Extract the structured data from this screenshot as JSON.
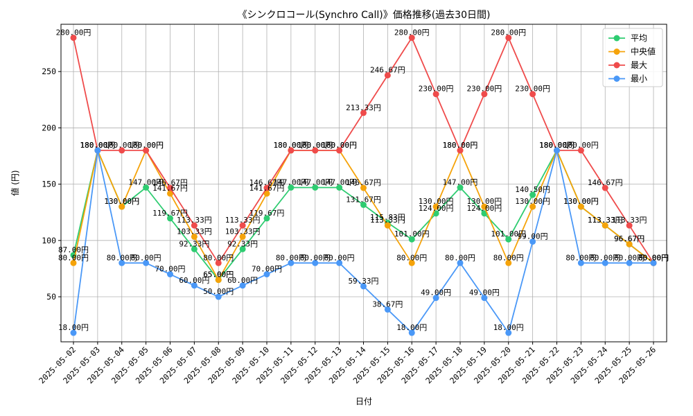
{
  "chart_data": {
    "type": "line",
    "title": "《シンクロコール(Synchro Call)》価格推移(過去30日間)",
    "xlabel": "日付",
    "ylabel": "値 (円)",
    "categories": [
      "2025-05-02",
      "2025-05-03",
      "2025-05-04",
      "2025-05-05",
      "2025-05-06",
      "2025-05-07",
      "2025-05-08",
      "2025-05-09",
      "2025-05-10",
      "2025-05-11",
      "2025-05-12",
      "2025-05-13",
      "2025-05-14",
      "2025-05-15",
      "2025-05-16",
      "2025-05-17",
      "2025-05-18",
      "2025-05-19",
      "2025-05-20",
      "2025-05-21",
      "2025-05-22",
      "2025-05-23",
      "2025-05-24",
      "2025-05-25",
      "2025-05-26"
    ],
    "ylim": [
      10,
      292
    ],
    "yticks": [
      50,
      100,
      150,
      200,
      250
    ],
    "grid": true,
    "legend_position": "top-right",
    "value_suffix": "円",
    "series": [
      {
        "name": "平均",
        "color": "#2ecc71",
        "values": [
          87,
          180,
          130,
          147,
          119.67,
          92.33,
          65,
          92.33,
          119.67,
          147,
          147,
          147,
          131.67,
          115.83,
          101,
          124,
          147,
          124,
          101,
          140.5,
          180,
          130,
          113.33,
          96.67,
          80
        ]
      },
      {
        "name": "中央値",
        "color": "#f5a30a",
        "values": [
          80,
          180,
          130,
          180,
          141.67,
          103.33,
          65,
          103.33,
          141.67,
          180,
          180,
          180,
          146.67,
          113.33,
          80,
          130,
          180,
          130,
          80,
          130,
          180,
          130,
          113.33,
          96.67,
          80
        ]
      },
      {
        "name": "最大",
        "color": "#ef4b4b",
        "values": [
          280,
          180,
          180,
          180,
          146.67,
          113.33,
          80,
          113.33,
          146.67,
          180,
          180,
          180,
          213.33,
          246.67,
          280,
          230,
          180,
          230,
          280,
          230,
          180,
          180,
          146.67,
          113.33,
          80
        ]
      },
      {
        "name": "最小",
        "color": "#4a98f7",
        "values": [
          18,
          180,
          80,
          80,
          70,
          60,
          50,
          60,
          70,
          80,
          80,
          80,
          59.33,
          38.67,
          18,
          49,
          80,
          49,
          18,
          99,
          180,
          80,
          80,
          80,
          80
        ]
      }
    ]
  }
}
